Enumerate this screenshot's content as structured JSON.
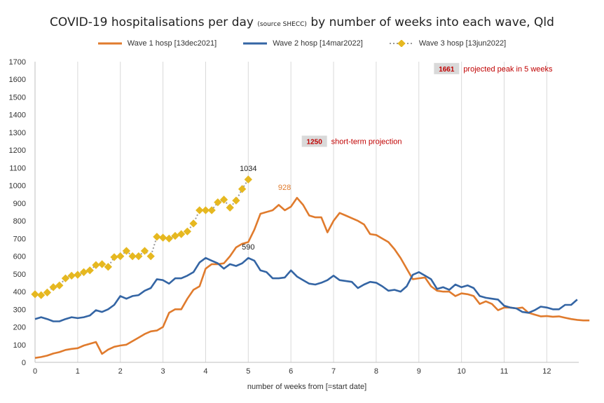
{
  "chart_data": {
    "type": "line",
    "title": "COVID-19 hospitalisations per day",
    "title_sub": "(source SHECC)",
    "title_rest": "by number of weeks into each wave, Qld",
    "xlabel": "number of weeks from [=start date]",
    "ylabel": "",
    "xlim": [
      0,
      12.75
    ],
    "ylim": [
      0,
      1700
    ],
    "yticks": [
      0,
      100,
      200,
      300,
      400,
      500,
      600,
      700,
      800,
      900,
      1000,
      1100,
      1200,
      1300,
      1400,
      1500,
      1600,
      1700
    ],
    "xticks": [
      0,
      1,
      2,
      3,
      4,
      5,
      6,
      7,
      8,
      9,
      10,
      11,
      12
    ],
    "grid": "vertical",
    "legend_position": "top",
    "series": [
      {
        "name": "Wave 1 hosp [13dec2021]",
        "color": "#e07b2d",
        "style": "solid",
        "x_start": 0,
        "x_step": 0.142857,
        "values": [
          25,
          30,
          38,
          50,
          58,
          70,
          76,
          80,
          95,
          105,
          115,
          48,
          72,
          88,
          95,
          100,
          120,
          140,
          160,
          175,
          180,
          200,
          280,
          300,
          300,
          360,
          410,
          430,
          530,
          555,
          555,
          560,
          600,
          650,
          670,
          680,
          750,
          840,
          850,
          860,
          890,
          860,
          880,
          930,
          890,
          830,
          820,
          820,
          735,
          800,
          845,
          830,
          815,
          800,
          780,
          725,
          720,
          700,
          680,
          640,
          590,
          530,
          470,
          475,
          480,
          430,
          405,
          400,
          400,
          375,
          390,
          385,
          375,
          330,
          345,
          330,
          295,
          310,
          310,
          305,
          310,
          280,
          270,
          260,
          262,
          258,
          260,
          252,
          245,
          240,
          237,
          237
        ]
      },
      {
        "name": "Wave 2 hosp [14mar2022]",
        "color": "#3465a4",
        "style": "solid",
        "x_start": 0,
        "x_step": 0.142857,
        "values": [
          245,
          255,
          245,
          232,
          232,
          245,
          255,
          250,
          255,
          265,
          295,
          285,
          300,
          325,
          375,
          360,
          375,
          380,
          405,
          420,
          470,
          465,
          445,
          475,
          475,
          490,
          510,
          565,
          590,
          575,
          560,
          530,
          555,
          545,
          560,
          590,
          575,
          520,
          510,
          475,
          475,
          480,
          520,
          485,
          465,
          445,
          440,
          450,
          465,
          490,
          465,
          460,
          455,
          420,
          440,
          455,
          450,
          430,
          405,
          410,
          400,
          430,
          495,
          510,
          490,
          470,
          415,
          425,
          410,
          440,
          425,
          435,
          420,
          375,
          365,
          360,
          355,
          320,
          310,
          305,
          285,
          280,
          295,
          315,
          310,
          300,
          300,
          325,
          325,
          355
        ]
      },
      {
        "name": "Wave 3 hosp [13jun2022]",
        "color": "#e6b820",
        "style": "dotted-markers",
        "x_start": 0,
        "x_step": 0.142857,
        "values": [
          385,
          380,
          395,
          425,
          435,
          475,
          490,
          495,
          510,
          520,
          550,
          555,
          540,
          595,
          600,
          630,
          600,
          600,
          630,
          600,
          710,
          705,
          700,
          715,
          725,
          740,
          785,
          860,
          860,
          860,
          905,
          920,
          875,
          915,
          980,
          1034
        ]
      }
    ],
    "annotations": [
      {
        "text": "928",
        "x": 5.85,
        "y": 928,
        "color": "#e07b2d"
      },
      {
        "text": "590",
        "x": 5.0,
        "y": 590,
        "color": "#222222"
      },
      {
        "text": "1034",
        "x": 5.0,
        "y": 1034,
        "color": "#222222"
      }
    ],
    "callouts": [
      {
        "value": "1250",
        "label": "short-term projection",
        "x": 6.55,
        "y": 1250,
        "color": "#c00000"
      },
      {
        "value": "1661",
        "label": "projected peak in 5 weeks",
        "x": 9.65,
        "y": 1661,
        "color": "#c00000"
      }
    ]
  }
}
